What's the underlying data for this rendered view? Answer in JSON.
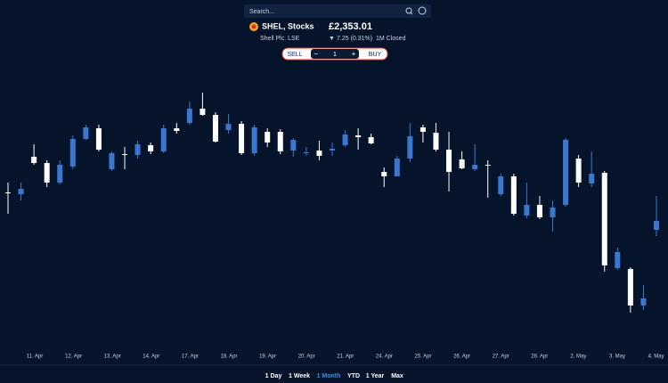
{
  "header": {
    "search_placeholder": "Search...",
    "symbol": "SHEL, Stocks",
    "price": "£2,353.01",
    "company": "Shell Plc. LSE",
    "change_arrow": "▼",
    "change": "7.25 (0.31%)",
    "status": "1M Closed"
  },
  "trade": {
    "sell": "SELL",
    "minus": "−",
    "quantity": "1",
    "plus": "+",
    "buy": "BUY"
  },
  "ranges": {
    "items": [
      "1 Day",
      "1 Week",
      "1 Month",
      "YTD",
      "1 Year",
      "Max"
    ],
    "active": 2
  },
  "chart_data": {
    "type": "candlestick",
    "up_color": "#3a78d0",
    "down_color": "#ffffff",
    "x_labels": [
      "11. Apr",
      "12. Apr",
      "13. Apr",
      "14. Apr",
      "17. Apr",
      "18. Apr",
      "19. Apr",
      "20. Apr",
      "21. Apr",
      "24. Apr",
      "25. Apr",
      "26. Apr",
      "27. Apr",
      "28. Apr",
      "2. May",
      "3. May",
      "4. May"
    ],
    "ylim": [
      2200,
      2500
    ],
    "open": [
      2384,
      2382,
      2424,
      2417,
      2395,
      2413,
      2444,
      2456,
      2410,
      2427,
      2426,
      2437,
      2430,
      2456,
      2462,
      2478,
      2471,
      2454,
      2461,
      2428,
      2452,
      2452,
      2431,
      2428,
      2431,
      2431,
      2437,
      2448,
      2446,
      2407,
      2402,
      2422,
      2457,
      2451,
      2432,
      2421,
      2410,
      2415,
      2382,
      2402,
      2358,
      2370,
      2356,
      2370,
      2422,
      2394,
      2406,
      2299,
      2298,
      2257,
      2342
    ],
    "high": [
      2395,
      2395,
      2438,
      2420,
      2420,
      2448,
      2460,
      2460,
      2430,
      2435,
      2442,
      2440,
      2460,
      2462,
      2486,
      2496,
      2474,
      2472,
      2464,
      2460,
      2456,
      2455,
      2445,
      2435,
      2442,
      2440,
      2454,
      2456,
      2450,
      2412,
      2425,
      2462,
      2460,
      2462,
      2452,
      2430,
      2438,
      2420,
      2405,
      2405,
      2395,
      2380,
      2375,
      2445,
      2426,
      2430,
      2408,
      2322,
      2300,
      2280,
      2380
    ],
    "low": [
      2360,
      2375,
      2415,
      2390,
      2393,
      2410,
      2443,
      2430,
      2408,
      2410,
      2422,
      2427,
      2428,
      2450,
      2460,
      2470,
      2440,
      2450,
      2426,
      2425,
      2435,
      2427,
      2424,
      2425,
      2420,
      2425,
      2435,
      2432,
      2438,
      2390,
      2402,
      2418,
      2440,
      2430,
      2385,
      2410,
      2408,
      2378,
      2380,
      2358,
      2355,
      2354,
      2340,
      2368,
      2390,
      2390,
      2295,
      2297,
      2249,
      2252,
      2335
    ],
    "close": [
      2384,
      2388,
      2417,
      2395,
      2415,
      2444,
      2457,
      2432,
      2428,
      2427,
      2438,
      2430,
      2456,
      2453,
      2478,
      2471,
      2441,
      2461,
      2428,
      2457,
      2440,
      2430,
      2443,
      2429,
      2425,
      2433,
      2449,
      2446,
      2439,
      2402,
      2422,
      2447,
      2452,
      2432,
      2407,
      2411,
      2415,
      2415,
      2402,
      2360,
      2370,
      2356,
      2367,
      2443,
      2395,
      2405,
      2302,
      2317,
      2257,
      2265,
      2352
    ]
  }
}
